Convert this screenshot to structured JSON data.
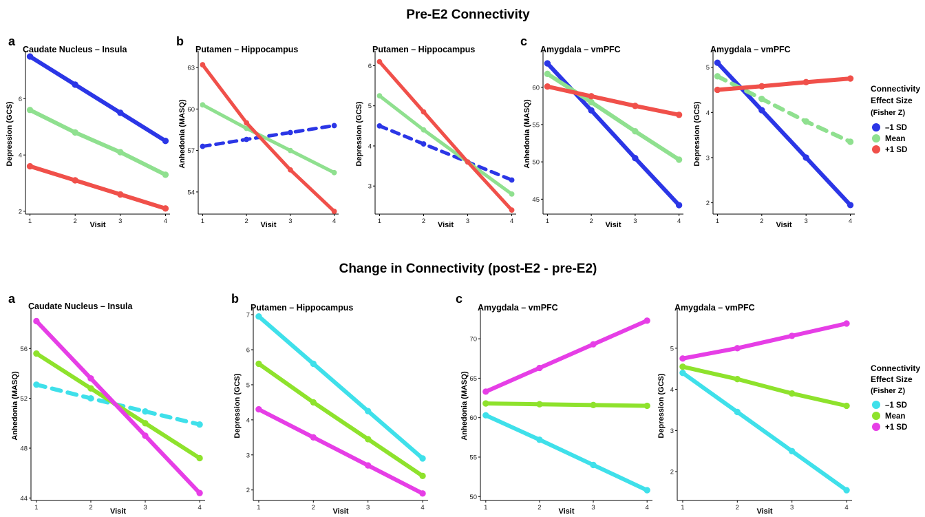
{
  "figure": {
    "top_title": "Pre-E2 Connectivity",
    "bottom_title": "Change in Connectivity (post-E2 - pre-E2)",
    "top_letters": [
      "a",
      "b",
      "c"
    ],
    "bottom_letters": [
      "a",
      "b",
      "c"
    ]
  },
  "legends": {
    "top": {
      "title_lines": [
        "Connectivity",
        "Effect Size",
        "(Fisher Z)"
      ],
      "items": [
        {
          "label": "–1 SD",
          "color": "#2b36e6"
        },
        {
          "label": "Mean",
          "color": "#8fe08f"
        },
        {
          "label": "+1 SD",
          "color": "#f0504a"
        }
      ]
    },
    "bottom": {
      "title_lines": [
        "Connectivity",
        "Effect Size",
        "(Fisher Z)"
      ],
      "items": [
        {
          "label": "–1 SD",
          "color": "#3fe0ea"
        },
        {
          "label": "Mean",
          "color": "#8ee22c"
        },
        {
          "label": "+1 SD",
          "color": "#e63ee6"
        }
      ]
    }
  },
  "chart_data": [
    {
      "type": "line",
      "title": "Caudate Nucleus – Insula",
      "xlabel": "Visit",
      "ylabel": "Depression (GCS)",
      "x": [
        1,
        2,
        3,
        4
      ],
      "xlim": [
        0.9,
        4.1
      ],
      "ylim": [
        1.9,
        7.6
      ],
      "yticks": [
        2,
        4,
        6
      ],
      "ytick_labels": [
        "2",
        "4",
        "6"
      ],
      "series": [
        {
          "name": "–1 SD",
          "color": "#2b36e6",
          "dashed": false,
          "values": [
            7.5,
            6.5,
            5.5,
            4.5
          ]
        },
        {
          "name": "Mean",
          "color": "#8fe08f",
          "dashed": false,
          "values": [
            5.6,
            4.8,
            4.1,
            3.3
          ]
        },
        {
          "name": "+1 SD",
          "color": "#f0504a",
          "dashed": false,
          "values": [
            3.6,
            3.1,
            2.6,
            2.1
          ]
        }
      ]
    },
    {
      "type": "line",
      "title": "Putamen – Hippocampus",
      "xlabel": "Visit",
      "ylabel": "Anhedonia (MASQ)",
      "x": [
        1,
        2,
        3,
        4
      ],
      "xlim": [
        0.9,
        4.1
      ],
      "ylim": [
        52.4,
        64.0
      ],
      "yticks": [
        54,
        57,
        60,
        63
      ],
      "ytick_labels": [
        "54",
        "57",
        "60",
        "63"
      ],
      "series": [
        {
          "name": "–1 SD",
          "color": "#2b36e6",
          "dashed": true,
          "values": [
            57.3,
            57.8,
            58.3,
            58.8
          ]
        },
        {
          "name": "Mean",
          "color": "#8fe08f",
          "dashed": false,
          "values": [
            60.3,
            58.6,
            57.0,
            55.4
          ]
        },
        {
          "name": "+1 SD",
          "color": "#f0504a",
          "dashed": false,
          "values": [
            63.2,
            59.0,
            55.6,
            52.6
          ]
        }
      ]
    },
    {
      "type": "line",
      "title": "Putamen – Hippocampus",
      "xlabel": "Visit",
      "ylabel": "Depression (GCS)",
      "x": [
        1,
        2,
        3,
        4
      ],
      "xlim": [
        0.9,
        4.1
      ],
      "ylim": [
        2.3,
        6.3
      ],
      "yticks": [
        3,
        4,
        5,
        6
      ],
      "ytick_labels": [
        "3",
        "4",
        "5",
        "6"
      ],
      "series": [
        {
          "name": "–1 SD",
          "color": "#2b36e6",
          "dashed": true,
          "values": [
            4.5,
            4.05,
            3.6,
            3.15
          ]
        },
        {
          "name": "Mean",
          "color": "#8fe08f",
          "dashed": false,
          "values": [
            5.25,
            4.4,
            3.6,
            2.8
          ]
        },
        {
          "name": "+1 SD",
          "color": "#f0504a",
          "dashed": false,
          "values": [
            6.1,
            4.85,
            3.6,
            2.4
          ]
        }
      ]
    },
    {
      "type": "line",
      "title": "Amygdala – vmPFC",
      "xlabel": "Visit",
      "ylabel": "Anhedonia (MASQ)",
      "x": [
        1,
        2,
        3,
        4
      ],
      "xlim": [
        0.9,
        4.1
      ],
      "ylim": [
        43.0,
        64.5
      ],
      "yticks": [
        45,
        50,
        55,
        60
      ],
      "ytick_labels": [
        "45",
        "50",
        "55",
        "60"
      ],
      "series": [
        {
          "name": "–1 SD",
          "color": "#2b36e6",
          "dashed": false,
          "values": [
            63.2,
            56.9,
            50.5,
            44.2
          ]
        },
        {
          "name": "Mean",
          "color": "#8fe08f",
          "dashed": false,
          "values": [
            61.8,
            58.0,
            54.1,
            50.3
          ]
        },
        {
          "name": "+1 SD",
          "color": "#f0504a",
          "dashed": false,
          "values": [
            60.1,
            58.8,
            57.5,
            56.3
          ]
        }
      ]
    },
    {
      "type": "line",
      "title": "Amygdala – vmPFC",
      "xlabel": "Visit",
      "ylabel": "Depression (GCS)",
      "x": [
        1,
        2,
        3,
        4
      ],
      "xlim": [
        0.9,
        4.1
      ],
      "ylim": [
        1.75,
        5.3
      ],
      "yticks": [
        2,
        3,
        4,
        5
      ],
      "ytick_labels": [
        "2",
        "3",
        "4",
        "5"
      ],
      "series": [
        {
          "name": "–1 SD",
          "color": "#2b36e6",
          "dashed": false,
          "values": [
            5.1,
            4.05,
            3.0,
            1.95
          ]
        },
        {
          "name": "Mean",
          "color": "#8fe08f",
          "dashed": true,
          "values": [
            4.8,
            4.3,
            3.8,
            3.35
          ]
        },
        {
          "name": "+1 SD",
          "color": "#f0504a",
          "dashed": false,
          "values": [
            4.5,
            4.58,
            4.67,
            4.75
          ]
        }
      ]
    },
    {
      "type": "line",
      "title": "Caudate Nucleus – Insula",
      "xlabel": "Visit",
      "ylabel": "Anhedonia (MASQ)",
      "x": [
        1,
        2,
        3,
        4
      ],
      "xlim": [
        0.9,
        4.1
      ],
      "ylim": [
        43.8,
        59.0
      ],
      "yticks": [
        44,
        48,
        52,
        56
      ],
      "ytick_labels": [
        "44",
        "48",
        "52",
        "56"
      ],
      "series": [
        {
          "name": "–1 SD",
          "color": "#3fe0ea",
          "dashed": true,
          "values": [
            53.1,
            52.0,
            50.95,
            49.9
          ]
        },
        {
          "name": "Mean",
          "color": "#8ee22c",
          "dashed": false,
          "values": [
            55.6,
            52.8,
            50.0,
            47.2
          ]
        },
        {
          "name": "+1 SD",
          "color": "#e63ee6",
          "dashed": false,
          "values": [
            58.2,
            53.6,
            49.0,
            44.4
          ]
        }
      ]
    },
    {
      "type": "line",
      "title": "Putamen – Hippocampus",
      "xlabel": "Visit",
      "ylabel": "Depression (GCS)",
      "x": [
        1,
        2,
        3,
        4
      ],
      "xlim": [
        0.9,
        4.1
      ],
      "ylim": [
        1.7,
        7.1
      ],
      "yticks": [
        2,
        3,
        4,
        5,
        6,
        7
      ],
      "ytick_labels": [
        "2",
        "3",
        "4",
        "5",
        "6",
        "7"
      ],
      "series": [
        {
          "name": "–1 SD",
          "color": "#3fe0ea",
          "dashed": false,
          "values": [
            6.95,
            5.6,
            4.25,
            2.9
          ]
        },
        {
          "name": "Mean",
          "color": "#8ee22c",
          "dashed": false,
          "values": [
            5.6,
            4.5,
            3.45,
            2.4
          ]
        },
        {
          "name": "+1 SD",
          "color": "#e63ee6",
          "dashed": false,
          "values": [
            4.3,
            3.5,
            2.7,
            1.9
          ]
        }
      ]
    },
    {
      "type": "line",
      "title": "Amygdala – vmPFC",
      "xlabel": "Visit",
      "ylabel": "Anhedonia (MASQ)",
      "x": [
        1,
        2,
        3,
        4
      ],
      "xlim": [
        0.9,
        4.1
      ],
      "ylim": [
        49.5,
        73.5
      ],
      "yticks": [
        50,
        55,
        60,
        65,
        70
      ],
      "ytick_labels": [
        "50",
        "55",
        "60",
        "65",
        "70"
      ],
      "series": [
        {
          "name": "–1 SD",
          "color": "#3fe0ea",
          "dashed": false,
          "values": [
            60.3,
            57.2,
            54.0,
            50.8
          ]
        },
        {
          "name": "Mean",
          "color": "#8ee22c",
          "dashed": false,
          "values": [
            61.8,
            61.7,
            61.6,
            61.5
          ]
        },
        {
          "name": "+1 SD",
          "color": "#e63ee6",
          "dashed": false,
          "values": [
            63.3,
            66.3,
            69.3,
            72.3
          ]
        }
      ]
    },
    {
      "type": "line",
      "title": "Amygdala – vmPFC",
      "xlabel": "Visit",
      "ylabel": "Depression (GCS)",
      "x": [
        1,
        2,
        3,
        4
      ],
      "xlim": [
        0.9,
        4.1
      ],
      "ylim": [
        1.3,
        5.9
      ],
      "yticks": [
        2,
        3,
        4,
        5
      ],
      "ytick_labels": [
        "2",
        "3",
        "4",
        "5"
      ],
      "series": [
        {
          "name": "–1 SD",
          "color": "#3fe0ea",
          "dashed": false,
          "values": [
            4.4,
            3.45,
            2.5,
            1.55
          ]
        },
        {
          "name": "Mean",
          "color": "#8ee22c",
          "dashed": false,
          "values": [
            4.55,
            4.25,
            3.9,
            3.6
          ]
        },
        {
          "name": "+1 SD",
          "color": "#e63ee6",
          "dashed": false,
          "values": [
            4.75,
            5.0,
            5.3,
            5.6
          ]
        }
      ]
    }
  ]
}
